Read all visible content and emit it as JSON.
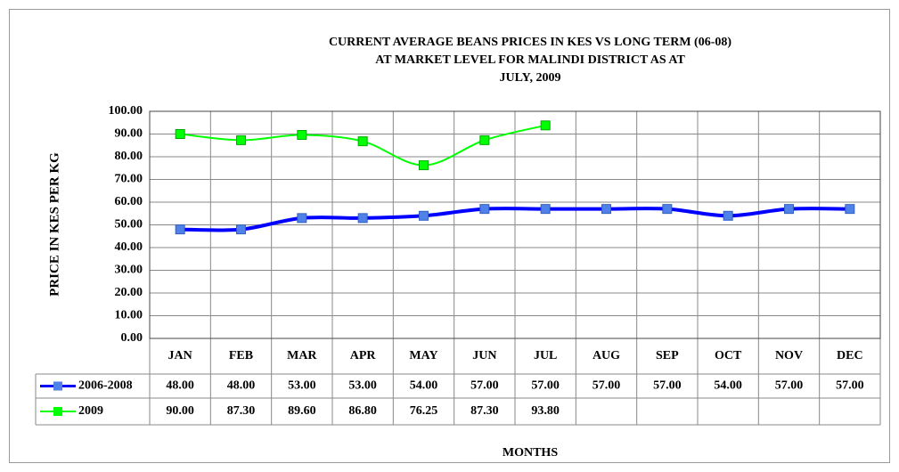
{
  "chart_data": {
    "type": "line",
    "title": [
      "CURRENT AVERAGE BEANS PRICES IN KES VS LONG TERM (06-08)",
      "AT MARKET LEVEL FOR MALINDI DISTRICT AS AT",
      "JULY, 2009"
    ],
    "ylabel": "PRICE IN KES PER KG",
    "xlabel": "MONTHS",
    "categories": [
      "JAN",
      "FEB",
      "MAR",
      "APR",
      "MAY",
      "JUN",
      "JUL",
      "AUG",
      "SEP",
      "OCT",
      "NOV",
      "DEC"
    ],
    "series": [
      {
        "name": "2006-2008",
        "color": "#0000ff",
        "marker_color": "#4f81e8",
        "values": [
          48,
          48,
          53,
          53,
          54,
          57,
          57,
          57,
          57,
          54,
          57,
          57
        ],
        "value_labels": [
          "48.00",
          "48.00",
          "53.00",
          "53.00",
          "54.00",
          "57.00",
          "57.00",
          "57.00",
          "57.00",
          "54.00",
          "57.00",
          "57.00"
        ]
      },
      {
        "name": "2009",
        "color": "#00ff00",
        "marker_color": "#00ff00",
        "values": [
          90,
          87.3,
          89.6,
          86.8,
          76.25,
          87.3,
          93.8,
          null,
          null,
          null,
          null,
          null
        ],
        "value_labels": [
          "90.00",
          "87.30",
          "89.60",
          "86.80",
          "76.25",
          "87.30",
          "93.80",
          null,
          null,
          null,
          null,
          null
        ]
      }
    ],
    "ylim": [
      0,
      100
    ],
    "yticks": [
      {
        "value": 0,
        "label": "0.00"
      },
      {
        "value": 10,
        "label": "10.00"
      },
      {
        "value": 20,
        "label": "20.00"
      },
      {
        "value": 30,
        "label": "30.00"
      },
      {
        "value": 40,
        "label": "40.00"
      },
      {
        "value": 50,
        "label": "50.00"
      },
      {
        "value": 60,
        "label": "60.00"
      },
      {
        "value": 70,
        "label": "70.00"
      },
      {
        "value": 80,
        "label": "80.00"
      },
      {
        "value": 90,
        "label": "90.00"
      },
      {
        "value": 100,
        "label": "100.00"
      }
    ],
    "grid": true
  }
}
